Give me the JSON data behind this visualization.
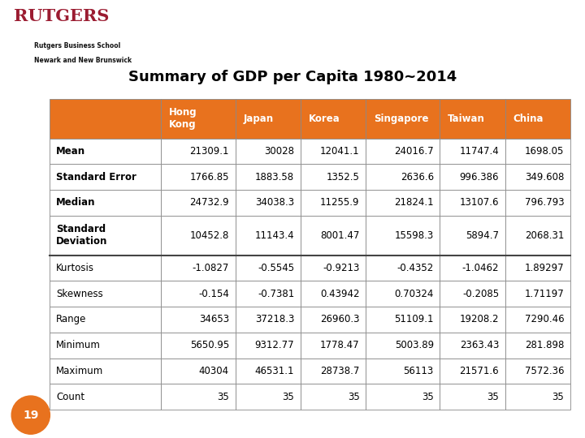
{
  "title": "Summary of GDP per Capita 1980~2014",
  "columns": [
    "Hong\nKong",
    "Japan",
    "Korea",
    "Singapore",
    "Taiwan",
    "China"
  ],
  "rows": [
    [
      "Mean",
      "21309.1",
      "30028",
      "12041.1",
      "24016.7",
      "11747.4",
      "1698.05"
    ],
    [
      "Standard Error",
      "1766.85",
      "1883.58",
      "1352.5",
      "2636.6",
      "996.386",
      "349.608"
    ],
    [
      "Median",
      "24732.9",
      "34038.3",
      "11255.9",
      "21824.1",
      "13107.6",
      "796.793"
    ],
    [
      "Standard\nDeviation",
      "10452.8",
      "11143.4",
      "8001.47",
      "15598.3",
      "5894.7",
      "2068.31"
    ],
    [
      "Kurtosis",
      "-1.0827",
      "-0.5545",
      "-0.9213",
      "-0.4352",
      "-1.0462",
      "1.89297"
    ],
    [
      "Skewness",
      "-0.154",
      "-0.7381",
      "0.43942",
      "0.70324",
      "-0.2085",
      "1.71197"
    ],
    [
      "Range",
      "34653",
      "37218.3",
      "26960.3",
      "51109.1",
      "19208.2",
      "7290.46"
    ],
    [
      "Minimum",
      "5650.95",
      "9312.77",
      "1778.47",
      "5003.89",
      "2363.43",
      "281.898"
    ],
    [
      "Maximum",
      "40304",
      "46531.1",
      "28738.7",
      "56113",
      "21571.6",
      "7572.36"
    ],
    [
      "Count",
      "35",
      "35",
      "35",
      "35",
      "35",
      "35"
    ]
  ],
  "header_bg": "#E8721E",
  "header_fg": "#FFFFFF",
  "border_color": "#888888",
  "title_fontsize": 13,
  "cell_fontsize": 8.5,
  "header_fontsize": 8.5,
  "rutgers_red": "#9B1C31",
  "slide_bg": "#FFFFFF",
  "page_num": "19",
  "page_circle_color": "#E8721E",
  "bold_label_rows": [
    0,
    1,
    2,
    3
  ]
}
